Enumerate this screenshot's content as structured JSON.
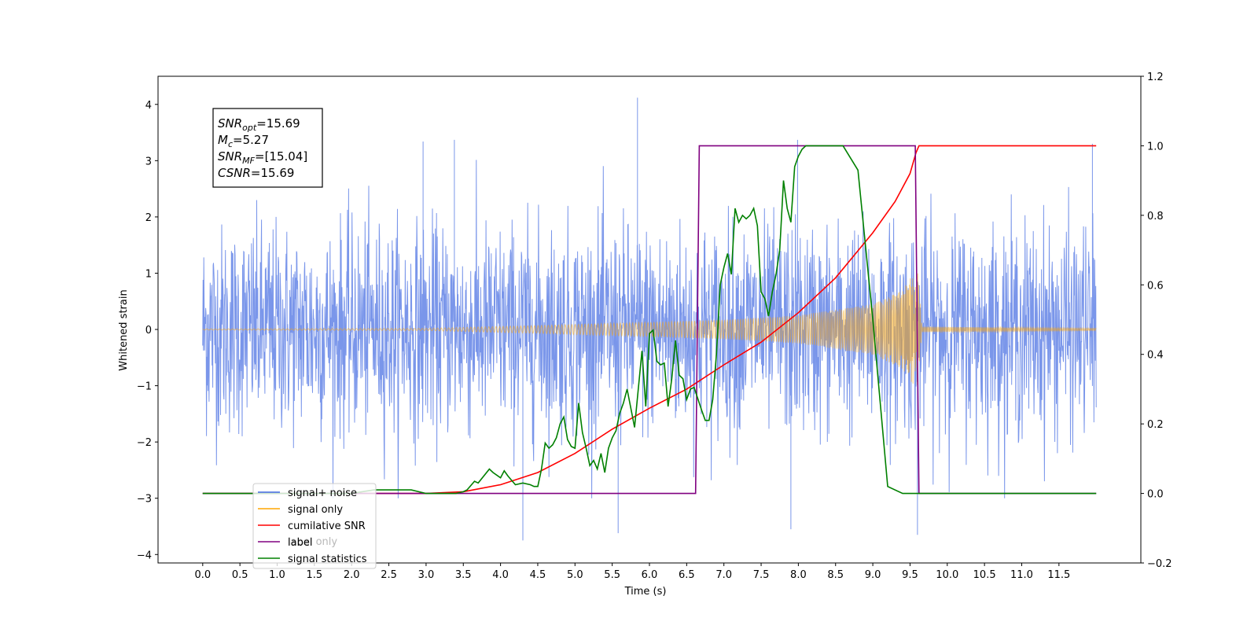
{
  "chart_data": {
    "type": "line",
    "xlabel": "Time (s)",
    "ylabel": "Whitened strain",
    "xlim": [
      -0.6,
      12.6
    ],
    "ylim": [
      -4.15,
      4.5
    ],
    "y2lim": [
      -0.2,
      1.2
    ],
    "x_ticks": [
      "0.0",
      "0.5",
      "1.0",
      "1.5",
      "2.0",
      "2.5",
      "3.0",
      "3.5",
      "4.0",
      "4.5",
      "5.0",
      "5.5",
      "6.0",
      "6.5",
      "7.0",
      "7.5",
      "8.0",
      "8.5",
      "9.0",
      "9.5",
      "10.0",
      "10.5",
      "11.0",
      "11.5"
    ],
    "y_ticks": [
      4,
      3,
      2,
      1,
      0,
      -1,
      -2,
      -3,
      -4
    ],
    "y2_ticks": [
      "1.2",
      "1.0",
      "0.8",
      "0.6",
      "0.4",
      "0.2",
      "0.0",
      "−0.2"
    ],
    "stats": [
      {
        "name": "SNR",
        "sub": "opt",
        "value": "=15.69"
      },
      {
        "name": "M",
        "sub": "c",
        "value": "=5.27"
      },
      {
        "name": "SNR",
        "sub": "MF",
        "value": "=[15.04]"
      },
      {
        "name": "CSNR",
        "sub": "",
        "value": "=15.69"
      }
    ],
    "legend": {
      "placement": "lower-left",
      "entries": [
        {
          "label": "signal+ noise",
          "color": "#4169e1"
        },
        {
          "label": "signal only",
          "color": "#ffa500"
        },
        {
          "label": "cumilative SNR",
          "color": "#ff0000"
        },
        {
          "label": "label",
          "color": "#800080"
        },
        {
          "label": "signal statistics",
          "color": "#008000"
        }
      ],
      "hidden_behind_text": "label only"
    },
    "series": [
      {
        "name": "signal+ noise",
        "axis": "left",
        "color": "#4169e1",
        "render": "noise",
        "x_start": 0.0,
        "x_end": 12.0,
        "envelope_peak": 3.3,
        "envelope_trough": -3.0,
        "notable_extremes": [
          [
            5.84,
            4.12
          ],
          [
            4.3,
            -3.75
          ],
          [
            9.6,
            -3.65
          ],
          [
            5.58,
            -3.62
          ],
          [
            7.9,
            -3.55
          ],
          [
            3.38,
            3.37
          ],
          [
            7.99,
            3.37
          ],
          [
            2.96,
            3.34
          ],
          [
            11.95,
            3.3
          ]
        ]
      },
      {
        "name": "signal only",
        "axis": "left",
        "color": "#ffa500",
        "render": "chirp",
        "x_start": 0.0,
        "x_end": 12.0,
        "merger_time": 9.62,
        "amplitude_envelope": [
          [
            0.0,
            0.01
          ],
          [
            3.0,
            0.02
          ],
          [
            4.5,
            0.07
          ],
          [
            6.0,
            0.13
          ],
          [
            7.0,
            0.17
          ],
          [
            8.0,
            0.25
          ],
          [
            9.0,
            0.45
          ],
          [
            9.4,
            0.7
          ],
          [
            9.6,
            1.1
          ],
          [
            9.66,
            0.05
          ],
          [
            12.0,
            0.02
          ]
        ]
      },
      {
        "name": "cumilative SNR",
        "axis": "right",
        "color": "#ff0000",
        "x": [
          0.0,
          3.0,
          3.5,
          4.0,
          4.5,
          5.0,
          5.5,
          6.0,
          6.5,
          7.0,
          7.5,
          8.0,
          8.5,
          9.0,
          9.3,
          9.5,
          9.58,
          9.62,
          9.64,
          12.0
        ],
        "y": [
          0.0,
          0.0,
          0.005,
          0.025,
          0.06,
          0.115,
          0.185,
          0.245,
          0.3,
          0.37,
          0.435,
          0.52,
          0.62,
          0.75,
          0.84,
          0.92,
          0.98,
          1.0,
          1.0,
          1.0
        ]
      },
      {
        "name": "label",
        "axis": "right",
        "color": "#800080",
        "x": [
          0.0,
          6.62,
          6.67,
          9.57,
          9.62,
          12.0
        ],
        "y": [
          0.0,
          0.0,
          1.0,
          1.0,
          0.0,
          0.0
        ]
      },
      {
        "name": "signal statistics",
        "axis": "right",
        "color": "#008000",
        "x": [
          0.0,
          2.0,
          2.3,
          2.5,
          2.8,
          3.0,
          3.2,
          3.4,
          3.5,
          3.55,
          3.65,
          3.7,
          3.85,
          3.9,
          4.0,
          4.05,
          4.1,
          4.2,
          4.3,
          4.4,
          4.45,
          4.5,
          4.55,
          4.6,
          4.65,
          4.7,
          4.75,
          4.8,
          4.85,
          4.9,
          4.95,
          5.0,
          5.05,
          5.1,
          5.15,
          5.2,
          5.25,
          5.3,
          5.35,
          5.4,
          5.45,
          5.5,
          5.55,
          5.6,
          5.65,
          5.7,
          5.8,
          5.9,
          5.95,
          6.0,
          6.05,
          6.1,
          6.15,
          6.2,
          6.25,
          6.3,
          6.35,
          6.4,
          6.45,
          6.5,
          6.55,
          6.6,
          6.7,
          6.75,
          6.8,
          6.85,
          6.9,
          6.95,
          7.0,
          7.05,
          7.1,
          7.15,
          7.2,
          7.25,
          7.3,
          7.35,
          7.4,
          7.45,
          7.5,
          7.55,
          7.6,
          7.65,
          7.7,
          7.75,
          7.8,
          7.85,
          7.9,
          7.95,
          8.0,
          8.05,
          8.1,
          8.15,
          8.2,
          8.25,
          8.3,
          8.35,
          8.4,
          8.45,
          8.5,
          8.6,
          8.8,
          9.0,
          9.2,
          9.4,
          9.5,
          9.55,
          9.6,
          9.62,
          9.65,
          9.7,
          9.75,
          9.8,
          10.0,
          12.0
        ],
        "y": [
          0.0,
          0.0,
          0.01,
          0.01,
          0.01,
          0.0,
          0.0,
          0.0,
          0.005,
          0.01,
          0.035,
          0.03,
          0.07,
          0.06,
          0.045,
          0.065,
          0.05,
          0.025,
          0.03,
          0.025,
          0.02,
          0.02,
          0.07,
          0.145,
          0.13,
          0.14,
          0.16,
          0.2,
          0.22,
          0.155,
          0.135,
          0.13,
          0.26,
          0.175,
          0.13,
          0.08,
          0.095,
          0.07,
          0.115,
          0.06,
          0.13,
          0.16,
          0.18,
          0.23,
          0.26,
          0.3,
          0.19,
          0.41,
          0.25,
          0.46,
          0.47,
          0.38,
          0.37,
          0.375,
          0.25,
          0.33,
          0.44,
          0.34,
          0.33,
          0.27,
          0.3,
          0.305,
          0.24,
          0.21,
          0.21,
          0.27,
          0.4,
          0.6,
          0.65,
          0.69,
          0.63,
          0.82,
          0.78,
          0.8,
          0.79,
          0.8,
          0.82,
          0.77,
          0.58,
          0.56,
          0.51,
          0.58,
          0.63,
          0.7,
          0.9,
          0.82,
          0.78,
          0.94,
          0.97,
          0.99,
          1.0,
          1.0,
          1.0,
          1.0,
          1.0,
          1.0,
          1.0,
          1.0,
          1.0,
          1.0,
          0.93,
          0.5,
          0.02,
          0.0,
          0.0,
          0.0,
          0.0,
          0.0,
          0.0,
          0.0,
          0.0,
          0.0,
          0.0,
          0.0
        ]
      }
    ]
  }
}
